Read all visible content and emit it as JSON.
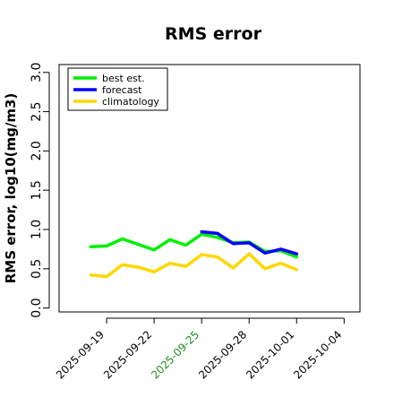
{
  "chart_data": {
    "type": "line",
    "title": "RMS error",
    "xlabel": "",
    "ylabel": "RMS error, log10(mg/m3)",
    "x_ticks": [
      "2025-09-19",
      "2025-09-22",
      "2025-09-25",
      "2025-09-28",
      "2025-10-01",
      "2025-10-04"
    ],
    "highlight_tick": "2025-09-25",
    "highlight_color": "#228B22",
    "y_ticks": [
      "0.0",
      "0.5",
      "1.0",
      "1.5",
      "2.0",
      "2.5",
      "3.0"
    ],
    "xlim": [
      "2025-09-16",
      "2025-10-05"
    ],
    "ylim": [
      -0.05,
      3.1
    ],
    "legend_position": "top-left",
    "series": [
      {
        "name": "best est.",
        "color": "#00ee00",
        "x": [
          "2025-09-18",
          "2025-09-19",
          "2025-09-20",
          "2025-09-21",
          "2025-09-22",
          "2025-09-23",
          "2025-09-24",
          "2025-09-25",
          "2025-09-26",
          "2025-09-27",
          "2025-09-28",
          "2025-09-29",
          "2025-09-30",
          "2025-10-01"
        ],
        "values": [
          0.78,
          0.79,
          0.88,
          0.81,
          0.74,
          0.87,
          0.8,
          0.94,
          0.9,
          0.83,
          0.84,
          0.72,
          0.73,
          0.65
        ]
      },
      {
        "name": "forecast",
        "color": "#0000ff",
        "x": [
          "2025-09-25",
          "2025-09-26",
          "2025-09-27",
          "2025-09-28",
          "2025-09-29",
          "2025-09-30",
          "2025-10-01"
        ],
        "values": [
          0.97,
          0.95,
          0.82,
          0.83,
          0.7,
          0.75,
          0.69
        ]
      },
      {
        "name": "climatology",
        "color": "#ffd700",
        "x": [
          "2025-09-18",
          "2025-09-19",
          "2025-09-20",
          "2025-09-21",
          "2025-09-22",
          "2025-09-23",
          "2025-09-24",
          "2025-09-25",
          "2025-09-26",
          "2025-09-27",
          "2025-09-28",
          "2025-09-29",
          "2025-09-30",
          "2025-10-01"
        ],
        "values": [
          0.42,
          0.4,
          0.55,
          0.52,
          0.46,
          0.57,
          0.53,
          0.68,
          0.65,
          0.51,
          0.69,
          0.5,
          0.57,
          0.49
        ]
      }
    ]
  }
}
